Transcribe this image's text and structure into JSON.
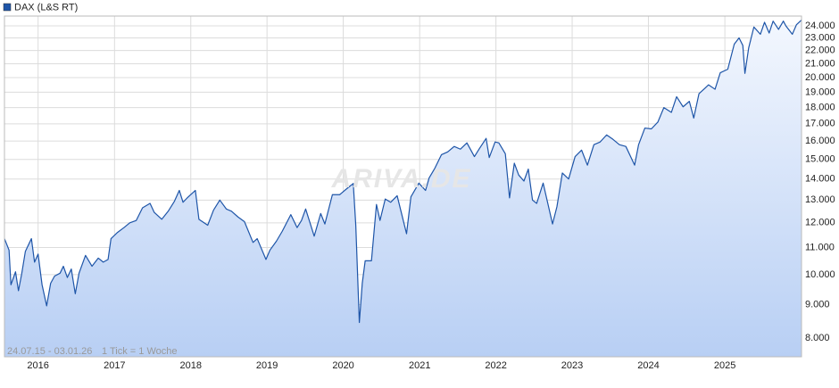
{
  "chart_data": {
    "type": "line",
    "legend": "DAX (L&S RT)",
    "period_note": "24.07.15 - 03.01.26",
    "tick_note": "1 Tick = 1 Woche",
    "watermark": "ARIVA.DE",
    "log_scale": true,
    "grid": true,
    "xlim": [
      "2015-07-24",
      "2026-01-03"
    ],
    "xticks": [
      2016,
      2017,
      2018,
      2019,
      2020,
      2021,
      2022,
      2023,
      2024,
      2025
    ],
    "ylim": [
      7490,
      24840
    ],
    "yticks": [
      {
        "value": 8000,
        "label": "8.000"
      },
      {
        "value": 9000,
        "label": "9.000"
      },
      {
        "value": 10000,
        "label": "10.000"
      },
      {
        "value": 11000,
        "label": "11.000"
      },
      {
        "value": 12000,
        "label": "12.000"
      },
      {
        "value": 13000,
        "label": "13.000"
      },
      {
        "value": 14000,
        "label": "14.000"
      },
      {
        "value": 15000,
        "label": "15.000"
      },
      {
        "value": 16000,
        "label": "16.000"
      },
      {
        "value": 17000,
        "label": "17.000"
      },
      {
        "value": 18000,
        "label": "18.000"
      },
      {
        "value": 19000,
        "label": "19.000"
      },
      {
        "value": 20000,
        "label": "20.000"
      },
      {
        "value": 21000,
        "label": "21.000"
      },
      {
        "value": 22000,
        "label": "22.000"
      },
      {
        "value": 23000,
        "label": "23.000"
      },
      {
        "value": 24000,
        "label": "24.000"
      }
    ],
    "x": [
      "2015-07-24",
      "2015-08-15",
      "2015-08-24",
      "2015-09-15",
      "2015-09-29",
      "2015-10-15",
      "2015-11-01",
      "2015-11-30",
      "2015-12-15",
      "2016-01-01",
      "2016-01-20",
      "2016-02-11",
      "2016-03-01",
      "2016-03-20",
      "2016-04-15",
      "2016-05-01",
      "2016-05-20",
      "2016-06-08",
      "2016-06-27",
      "2016-07-15",
      "2016-08-15",
      "2016-09-15",
      "2016-10-15",
      "2016-11-08",
      "2016-12-01",
      "2016-12-15",
      "2017-01-15",
      "2017-02-15",
      "2017-03-15",
      "2017-04-15",
      "2017-05-15",
      "2017-06-20",
      "2017-07-10",
      "2017-08-15",
      "2017-09-15",
      "2017-10-15",
      "2017-11-07",
      "2017-11-25",
      "2017-12-15",
      "2018-01-23",
      "2018-02-09",
      "2018-03-23",
      "2018-04-20",
      "2018-05-20",
      "2018-06-20",
      "2018-07-15",
      "2018-08-15",
      "2018-09-15",
      "2018-10-26",
      "2018-11-15",
      "2018-12-27",
      "2019-01-15",
      "2019-02-15",
      "2019-03-15",
      "2019-04-25",
      "2019-05-25",
      "2019-06-15",
      "2019-07-05",
      "2019-08-15",
      "2019-09-15",
      "2019-10-05",
      "2019-11-10",
      "2019-12-15",
      "2020-01-20",
      "2020-02-18",
      "2020-03-01",
      "2020-03-18",
      "2020-04-01",
      "2020-04-15",
      "2020-05-15",
      "2020-06-08",
      "2020-06-25",
      "2020-07-20",
      "2020-08-15",
      "2020-09-15",
      "2020-10-30",
      "2020-11-20",
      "2020-12-28",
      "2021-01-29",
      "2021-02-15",
      "2021-03-15",
      "2021-04-15",
      "2021-05-15",
      "2021-06-15",
      "2021-07-15",
      "2021-08-15",
      "2021-09-20",
      "2021-10-15",
      "2021-11-15",
      "2021-11-30",
      "2021-12-28",
      "2022-01-15",
      "2022-02-15",
      "2022-03-07",
      "2022-03-30",
      "2022-04-20",
      "2022-05-15",
      "2022-06-05",
      "2022-06-25",
      "2022-07-15",
      "2022-08-15",
      "2022-09-29",
      "2022-10-20",
      "2022-11-15",
      "2022-12-15",
      "2023-01-15",
      "2023-02-15",
      "2023-03-15",
      "2023-04-15",
      "2023-05-15",
      "2023-06-15",
      "2023-07-15",
      "2023-08-15",
      "2023-09-15",
      "2023-10-27",
      "2023-11-15",
      "2023-12-15",
      "2024-01-15",
      "2024-02-15",
      "2024-03-15",
      "2024-04-20",
      "2024-05-15",
      "2024-06-15",
      "2024-07-15",
      "2024-08-05",
      "2024-08-30",
      "2024-09-30",
      "2024-10-15",
      "2024-11-15",
      "2024-12-10",
      "2025-01-15",
      "2025-02-15",
      "2025-03-10",
      "2025-03-28",
      "2025-04-07",
      "2025-04-25",
      "2025-05-20",
      "2025-06-20",
      "2025-07-10",
      "2025-08-01",
      "2025-08-20",
      "2025-09-15",
      "2025-10-08",
      "2025-10-20",
      "2025-11-20",
      "2025-12-10",
      "2026-01-03"
    ],
    "series": [
      {
        "name": "DAX (L&S RT)",
        "color": "#1e55a8",
        "values": [
          11350,
          10900,
          9650,
          10100,
          9450,
          10050,
          10850,
          11350,
          10450,
          10750,
          9650,
          8960,
          9700,
          9950,
          10050,
          10300,
          9900,
          10200,
          9350,
          10050,
          10700,
          10300,
          10600,
          10450,
          10550,
          11350,
          11600,
          11800,
          12000,
          12100,
          12650,
          12850,
          12450,
          12150,
          12500,
          12950,
          13450,
          12900,
          13100,
          13450,
          12150,
          11900,
          12550,
          13000,
          12600,
          12500,
          12250,
          12050,
          11200,
          11350,
          10550,
          10900,
          11250,
          11650,
          12350,
          11800,
          12100,
          12600,
          11450,
          12400,
          11950,
          13250,
          13250,
          13550,
          13780,
          11900,
          8450,
          9700,
          10500,
          10500,
          12800,
          12100,
          13050,
          12900,
          13200,
          11550,
          13150,
          13800,
          13450,
          14050,
          14550,
          15250,
          15400,
          15700,
          15550,
          15900,
          15150,
          15600,
          16150,
          15100,
          15950,
          15900,
          15300,
          13100,
          14800,
          14200,
          13900,
          14500,
          13000,
          12850,
          13800,
          11950,
          12700,
          14300,
          14000,
          15150,
          15500,
          14700,
          15800,
          15950,
          16350,
          16100,
          15800,
          15700,
          14700,
          15800,
          16750,
          16700,
          17100,
          18000,
          17700,
          18700,
          18050,
          18400,
          17350,
          18900,
          19300,
          19500,
          19200,
          20350,
          20600,
          22500,
          23000,
          22400,
          20300,
          22200,
          23900,
          23300,
          24300,
          23400,
          24400,
          23700,
          24400,
          24000,
          23300,
          24100,
          24500
        ]
      }
    ]
  }
}
